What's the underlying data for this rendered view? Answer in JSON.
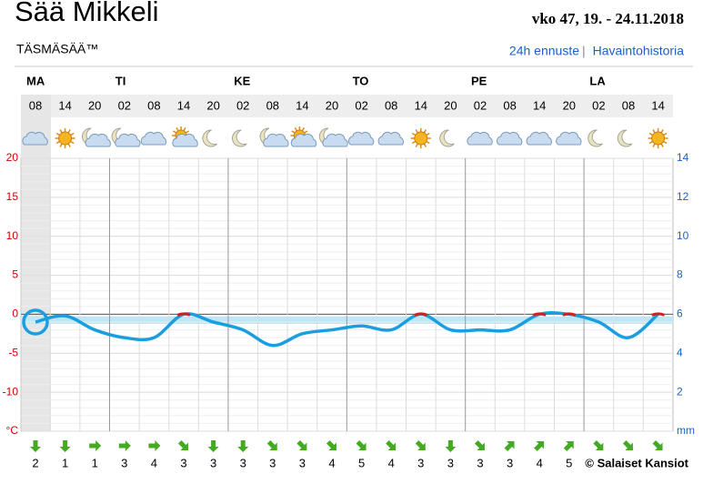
{
  "title": "Sää Mikkeli",
  "subtitle": "TÄSMÄSÄÄ™",
  "week": "vko 47, 19. - 24.11.2018",
  "links": [
    "24h ennuste",
    "Havaintohistoria"
  ],
  "link_separator": "|",
  "copyright": "© Salaiset Kansiot",
  "chart_data": {
    "type": "line",
    "days": [
      "MA",
      "TI",
      "KE",
      "TO",
      "PE",
      "LA"
    ],
    "categories": [
      "08",
      "14",
      "20",
      "02",
      "08",
      "14",
      "20",
      "02",
      "08",
      "14",
      "20",
      "02",
      "08",
      "14",
      "20",
      "02",
      "08",
      "14",
      "20",
      "02",
      "08",
      "14"
    ],
    "values": [
      -1,
      -0.2,
      -2,
      -3,
      -3,
      0,
      -1,
      -2,
      -4,
      -2.5,
      -2,
      -1.5,
      -2,
      0,
      -2,
      -2,
      -2,
      0,
      0,
      -1,
      -3,
      0
    ],
    "color": "#1a9ee0",
    "above_zero_color": "#cc2222",
    "icons": [
      "cloud",
      "sun",
      "moon-cloud",
      "moon-cloud",
      "cloud",
      "sun-cloud",
      "moon",
      "moon",
      "moon-cloud",
      "sun-cloud",
      "moon-cloud",
      "cloud",
      "cloud",
      "sun",
      "moon",
      "cloud",
      "cloud",
      "cloud",
      "cloud",
      "moon",
      "moon",
      "sun"
    ],
    "wind_speeds": [
      2,
      1,
      1,
      3,
      4,
      3,
      3,
      3,
      3,
      3,
      4,
      5,
      4,
      3,
      3,
      3,
      3,
      4,
      5,
      null,
      null,
      null
    ],
    "wind_directions": [
      90,
      90,
      0,
      0,
      0,
      45,
      90,
      90,
      45,
      45,
      45,
      45,
      45,
      45,
      90,
      45,
      -45,
      -45,
      -45,
      45,
      45,
      45
    ],
    "wind_color": "#44aa22",
    "ylim": [
      -15,
      20
    ],
    "yticks": [
      {
        "value": -15,
        "label": "°C"
      },
      -10,
      -5,
      0,
      5,
      10,
      15,
      20
    ],
    "y2lim": [
      0,
      14
    ],
    "y2ticks": [
      {
        "value": 0,
        "label": "mm"
      },
      2,
      4,
      6,
      8,
      10,
      12,
      14
    ],
    "grid": true
  }
}
